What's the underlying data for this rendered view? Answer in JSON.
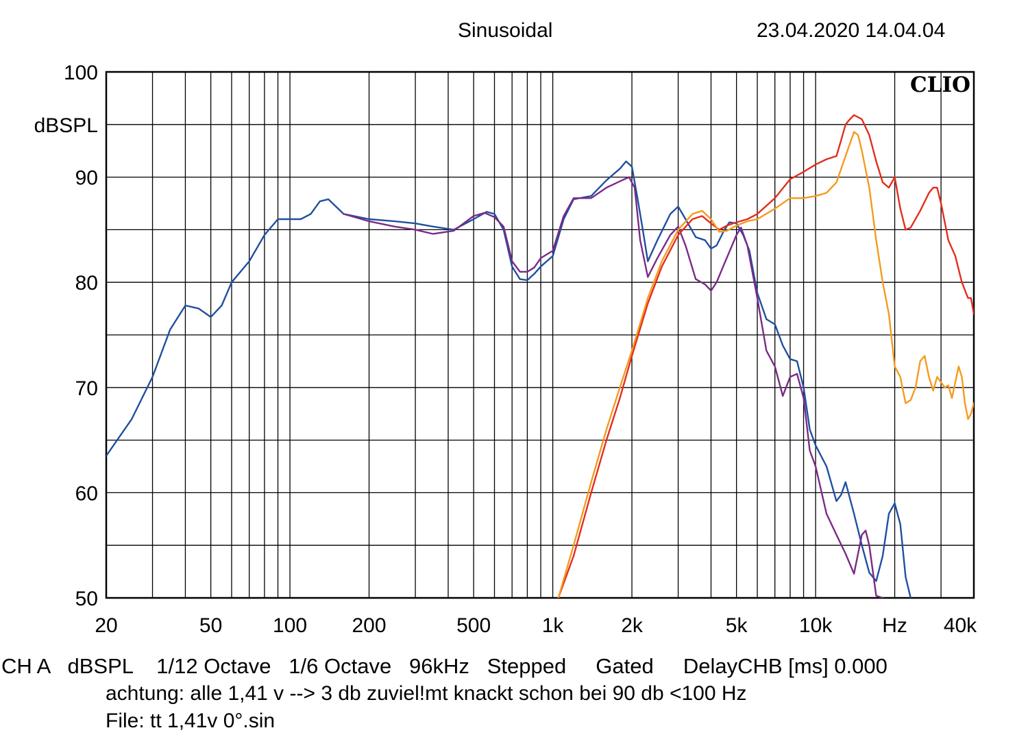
{
  "header": {
    "mode": "Sinusoidal",
    "datetime": "23.04.2020 14.04.04"
  },
  "logo": "CLIO",
  "footer": {
    "line1": "CH A   dBSPL    1/12 Octave   1/6 Octave   96kHz   Stepped     Gated     DelayCHB [ms] 0.000",
    "line2": "achtung: alle 1,41 v --> 3 db zuviel!mt knackt schon bei 90 db <100 Hz",
    "line3": "File: tt 1,41v 0°.sin"
  },
  "chart_data": {
    "type": "line",
    "x_scale": "log",
    "xlim": [
      20,
      40000
    ],
    "ylim": [
      50,
      100
    ],
    "grid": true,
    "ylabel": "dBSPL",
    "xlabel": "Hz",
    "y_tick_labels": [
      "100",
      "90",
      "80",
      "70",
      "60",
      "50"
    ],
    "y_tick_values": [
      100,
      90,
      80,
      70,
      60,
      50
    ],
    "x_tick_labels": [
      "20",
      "50",
      "100",
      "200",
      "500",
      "1k",
      "2k",
      "5k",
      "10k",
      "Hz",
      "40k"
    ],
    "x_tick_values": [
      20,
      50,
      100,
      200,
      500,
      1000,
      2000,
      5000,
      10000,
      20000,
      40000
    ],
    "series": [
      {
        "color": "#1f4fa0",
        "points": [
          [
            20,
            63.5
          ],
          [
            25,
            67
          ],
          [
            30,
            71
          ],
          [
            35,
            75.5
          ],
          [
            40,
            77.8
          ],
          [
            45,
            77.5
          ],
          [
            50,
            76.7
          ],
          [
            55,
            77.8
          ],
          [
            60,
            80
          ],
          [
            70,
            82
          ],
          [
            80,
            84.5
          ],
          [
            90,
            86
          ],
          [
            100,
            86
          ],
          [
            110,
            86
          ],
          [
            120,
            86.5
          ],
          [
            130,
            87.7
          ],
          [
            140,
            87.9
          ],
          [
            160,
            86.5
          ],
          [
            200,
            86
          ],
          [
            250,
            85.8
          ],
          [
            300,
            85.6
          ],
          [
            350,
            85.3
          ],
          [
            420,
            85
          ],
          [
            500,
            86
          ],
          [
            560,
            86.7
          ],
          [
            600,
            86.5
          ],
          [
            650,
            85
          ],
          [
            700,
            81.5
          ],
          [
            750,
            80.3
          ],
          [
            800,
            80.2
          ],
          [
            850,
            80.8
          ],
          [
            900,
            81.5
          ],
          [
            1000,
            82.5
          ],
          [
            1100,
            86
          ],
          [
            1200,
            87.9
          ],
          [
            1400,
            88.2
          ],
          [
            1600,
            89.7
          ],
          [
            1800,
            90.8
          ],
          [
            1900,
            91.5
          ],
          [
            2000,
            91
          ],
          [
            2100,
            88
          ],
          [
            2200,
            85
          ],
          [
            2300,
            82
          ],
          [
            2500,
            84
          ],
          [
            2800,
            86.5
          ],
          [
            3000,
            87.2
          ],
          [
            3200,
            86
          ],
          [
            3500,
            84.3
          ],
          [
            3800,
            84
          ],
          [
            4000,
            83.2
          ],
          [
            4200,
            83.5
          ],
          [
            4500,
            85
          ],
          [
            4700,
            85.7
          ],
          [
            5000,
            85.6
          ],
          [
            5300,
            84.5
          ],
          [
            5600,
            83
          ],
          [
            6000,
            79
          ],
          [
            6500,
            76.5
          ],
          [
            7000,
            76
          ],
          [
            7500,
            74
          ],
          [
            8000,
            72.7
          ],
          [
            8500,
            72.5
          ],
          [
            9000,
            70
          ],
          [
            9500,
            66
          ],
          [
            10000,
            64.5
          ],
          [
            11000,
            62.5
          ],
          [
            12000,
            59.2
          ],
          [
            12500,
            59.8
          ],
          [
            13000,
            61
          ],
          [
            14000,
            58
          ],
          [
            15000,
            55
          ],
          [
            16000,
            52.4
          ],
          [
            17000,
            51.6
          ],
          [
            18000,
            54
          ],
          [
            19000,
            58
          ],
          [
            20000,
            59
          ],
          [
            21000,
            57
          ],
          [
            22000,
            52
          ],
          [
            23000,
            50
          ]
        ]
      },
      {
        "color": "#7b2a86",
        "points": [
          [
            160,
            86.5
          ],
          [
            200,
            85.8
          ],
          [
            250,
            85.3
          ],
          [
            300,
            85
          ],
          [
            350,
            84.6
          ],
          [
            420,
            84.9
          ],
          [
            500,
            86.3
          ],
          [
            550,
            86.6
          ],
          [
            600,
            86.2
          ],
          [
            650,
            85.3
          ],
          [
            700,
            82
          ],
          [
            750,
            81
          ],
          [
            800,
            81
          ],
          [
            850,
            81.4
          ],
          [
            900,
            82.3
          ],
          [
            1000,
            83
          ],
          [
            1100,
            86.3
          ],
          [
            1200,
            88
          ],
          [
            1400,
            88
          ],
          [
            1600,
            89
          ],
          [
            1800,
            89.6
          ],
          [
            1950,
            90
          ],
          [
            2050,
            89
          ],
          [
            2150,
            84
          ],
          [
            2300,
            80.5
          ],
          [
            2500,
            82.3
          ],
          [
            2800,
            84.5
          ],
          [
            3000,
            85.3
          ],
          [
            3200,
            83.5
          ],
          [
            3500,
            80.3
          ],
          [
            3800,
            79.8
          ],
          [
            4000,
            79.2
          ],
          [
            4200,
            80
          ],
          [
            4500,
            81.8
          ],
          [
            5000,
            84.5
          ],
          [
            5200,
            85.2
          ],
          [
            5500,
            83.5
          ],
          [
            6000,
            78.5
          ],
          [
            6500,
            73.5
          ],
          [
            7000,
            72
          ],
          [
            7500,
            69.2
          ],
          [
            8000,
            71
          ],
          [
            8500,
            71.3
          ],
          [
            9000,
            69
          ],
          [
            9500,
            64
          ],
          [
            10000,
            62.5
          ],
          [
            11000,
            58
          ],
          [
            12000,
            56
          ],
          [
            13000,
            54.2
          ],
          [
            14000,
            52.3
          ],
          [
            15000,
            56
          ],
          [
            15500,
            56.4
          ],
          [
            16000,
            55
          ],
          [
            17000,
            50.2
          ],
          [
            18000,
            50
          ]
        ]
      },
      {
        "color": "#e32d1c",
        "points": [
          [
            1050,
            50
          ],
          [
            1200,
            54
          ],
          [
            1400,
            60
          ],
          [
            1600,
            65
          ],
          [
            1800,
            69
          ],
          [
            2000,
            73
          ],
          [
            2300,
            78
          ],
          [
            2600,
            81.5
          ],
          [
            3000,
            84.5
          ],
          [
            3400,
            86
          ],
          [
            3700,
            86.3
          ],
          [
            4000,
            85.6
          ],
          [
            4300,
            85
          ],
          [
            4600,
            85.4
          ],
          [
            5000,
            85.7
          ],
          [
            5500,
            86
          ],
          [
            6000,
            86.5
          ],
          [
            7000,
            88
          ],
          [
            8000,
            89.8
          ],
          [
            9000,
            90.5
          ],
          [
            10000,
            91.2
          ],
          [
            11000,
            91.7
          ],
          [
            12000,
            92
          ],
          [
            12500,
            93.5
          ],
          [
            13000,
            95
          ],
          [
            13500,
            95.5
          ],
          [
            14000,
            95.9
          ],
          [
            15000,
            95.5
          ],
          [
            16000,
            94
          ],
          [
            17000,
            91.5
          ],
          [
            18000,
            89.5
          ],
          [
            19000,
            89
          ],
          [
            20000,
            90
          ],
          [
            21000,
            87
          ],
          [
            22000,
            85
          ],
          [
            23000,
            85.2
          ],
          [
            25000,
            86.8
          ],
          [
            27000,
            88.5
          ],
          [
            28000,
            89
          ],
          [
            29000,
            89
          ],
          [
            30000,
            87.5
          ],
          [
            32000,
            84
          ],
          [
            34000,
            82.5
          ],
          [
            36000,
            80
          ],
          [
            38000,
            78.5
          ],
          [
            39000,
            78.5
          ],
          [
            40000,
            77
          ]
        ]
      },
      {
        "color": "#f59a1e",
        "points": [
          [
            1050,
            50
          ],
          [
            1200,
            55
          ],
          [
            1400,
            61
          ],
          [
            1600,
            66
          ],
          [
            1800,
            70
          ],
          [
            2000,
            73.5
          ],
          [
            2300,
            78.5
          ],
          [
            2600,
            82
          ],
          [
            3000,
            85
          ],
          [
            3400,
            86.5
          ],
          [
            3700,
            86.8
          ],
          [
            4000,
            86
          ],
          [
            4300,
            84.8
          ],
          [
            4600,
            84.9
          ],
          [
            5000,
            85.4
          ],
          [
            5500,
            85.8
          ],
          [
            6000,
            86
          ],
          [
            7000,
            87
          ],
          [
            8000,
            88
          ],
          [
            9000,
            88
          ],
          [
            10000,
            88.2
          ],
          [
            11000,
            88.5
          ],
          [
            12000,
            89.5
          ],
          [
            13000,
            92
          ],
          [
            14000,
            94.3
          ],
          [
            14500,
            94
          ],
          [
            15000,
            92.5
          ],
          [
            16000,
            89
          ],
          [
            17000,
            84
          ],
          [
            18000,
            80
          ],
          [
            19000,
            77
          ],
          [
            20000,
            72
          ],
          [
            21000,
            71
          ],
          [
            22000,
            68.5
          ],
          [
            23000,
            68.8
          ],
          [
            24000,
            70
          ],
          [
            25000,
            72.5
          ],
          [
            26000,
            73
          ],
          [
            27000,
            71
          ],
          [
            28000,
            69.7
          ],
          [
            29000,
            71
          ],
          [
            30000,
            70.5
          ],
          [
            31000,
            70
          ],
          [
            32000,
            70.2
          ],
          [
            33000,
            69
          ],
          [
            34000,
            70.5
          ],
          [
            35000,
            72
          ],
          [
            36000,
            71
          ],
          [
            37000,
            68.5
          ],
          [
            38000,
            67
          ],
          [
            39000,
            67.5
          ],
          [
            40000,
            68.5
          ]
        ]
      }
    ]
  }
}
